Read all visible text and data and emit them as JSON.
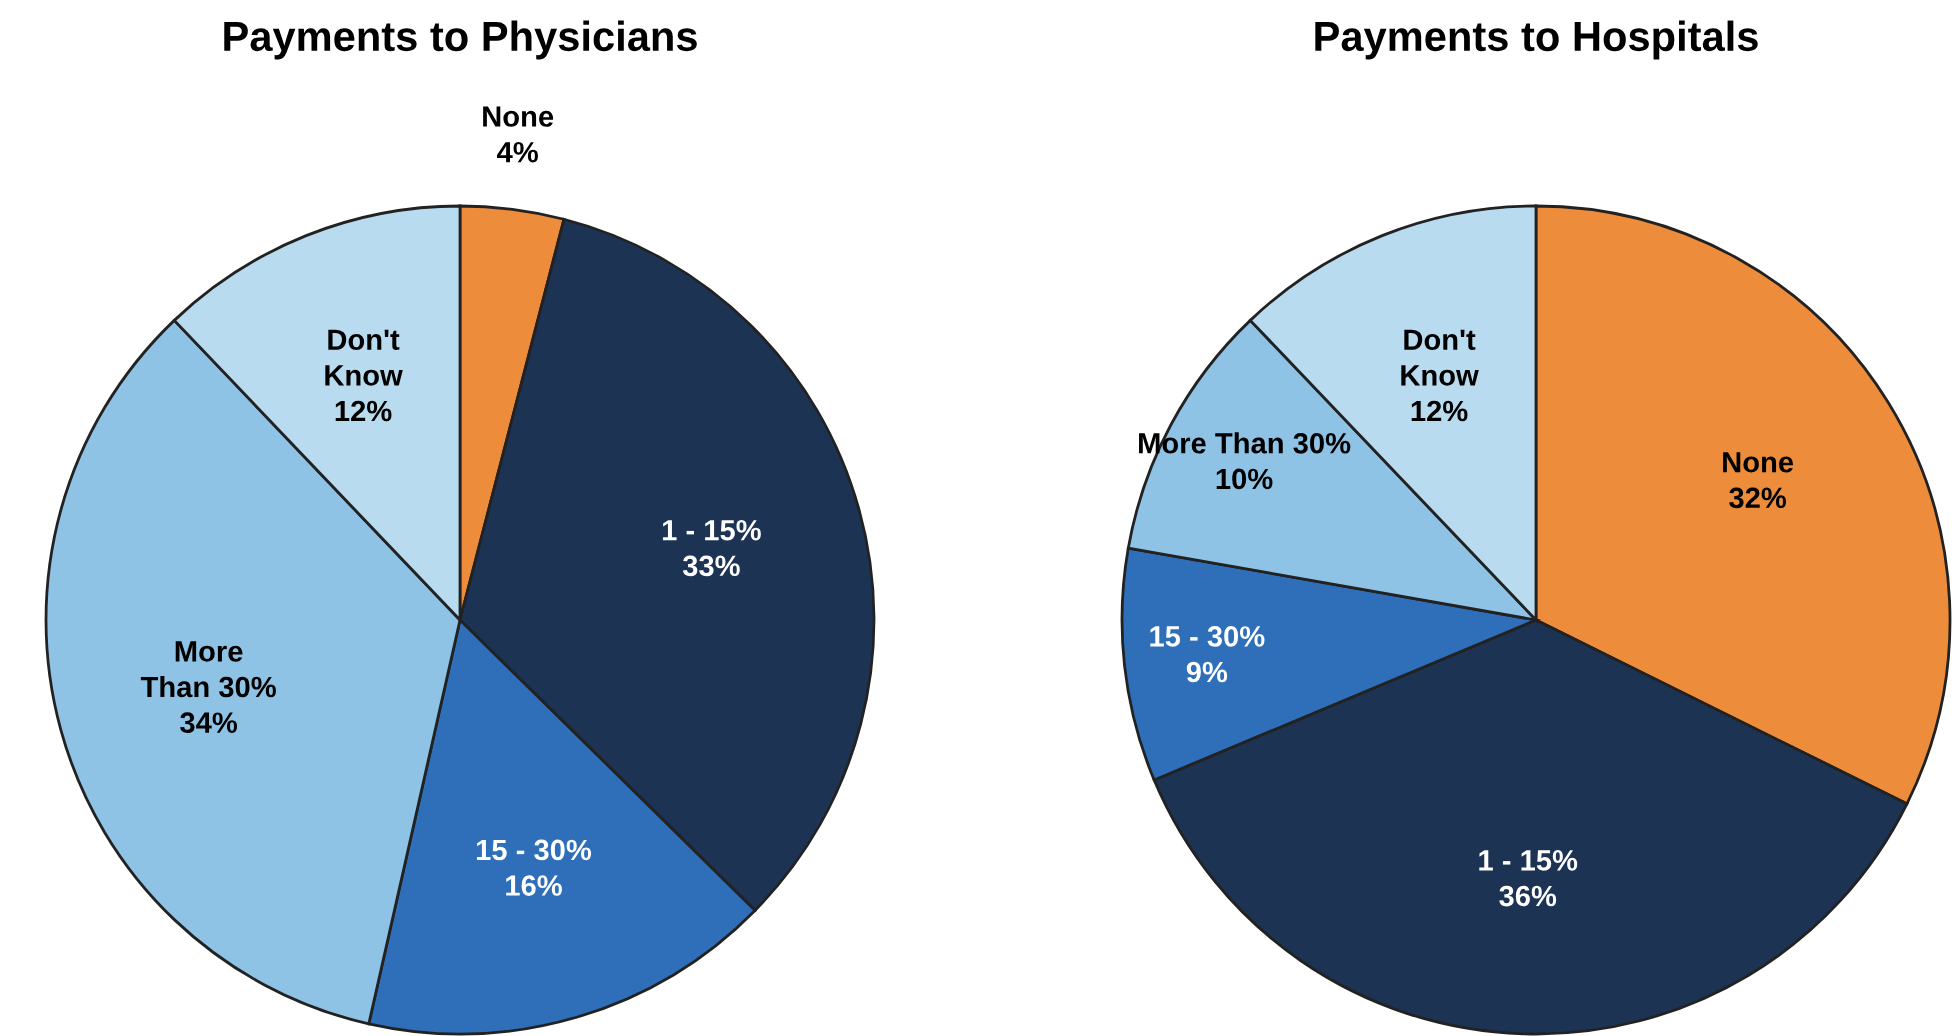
{
  "chart_data": [
    {
      "type": "pie",
      "title": "Payments to Physicians",
      "categories": [
        "None",
        "1 - 15%",
        "15 - 30%",
        "More\nThan 30%",
        "Don't\nKnow"
      ],
      "values": [
        4,
        33,
        16,
        34,
        12
      ],
      "value_labels": [
        "4%",
        "33%",
        "16%",
        "34%",
        "12%"
      ],
      "colors": [
        "#ed8d3b",
        "#1c3354",
        "#2f6fba",
        "#8fc3e6",
        "#b9dbf0"
      ]
    },
    {
      "type": "pie",
      "title": "Payments to Hospitals",
      "categories": [
        "None",
        "1 - 15%",
        "15 - 30%",
        "More Than 30%",
        "Don't\nKnow"
      ],
      "values": [
        32,
        36,
        9,
        10,
        12
      ],
      "value_labels": [
        "32%",
        "36%",
        "9%",
        "10%",
        "12%"
      ],
      "colors": [
        "#ed8d3b",
        "#1c3354",
        "#2f6fba",
        "#8fc3e6",
        "#b9dbf0"
      ]
    }
  ]
}
